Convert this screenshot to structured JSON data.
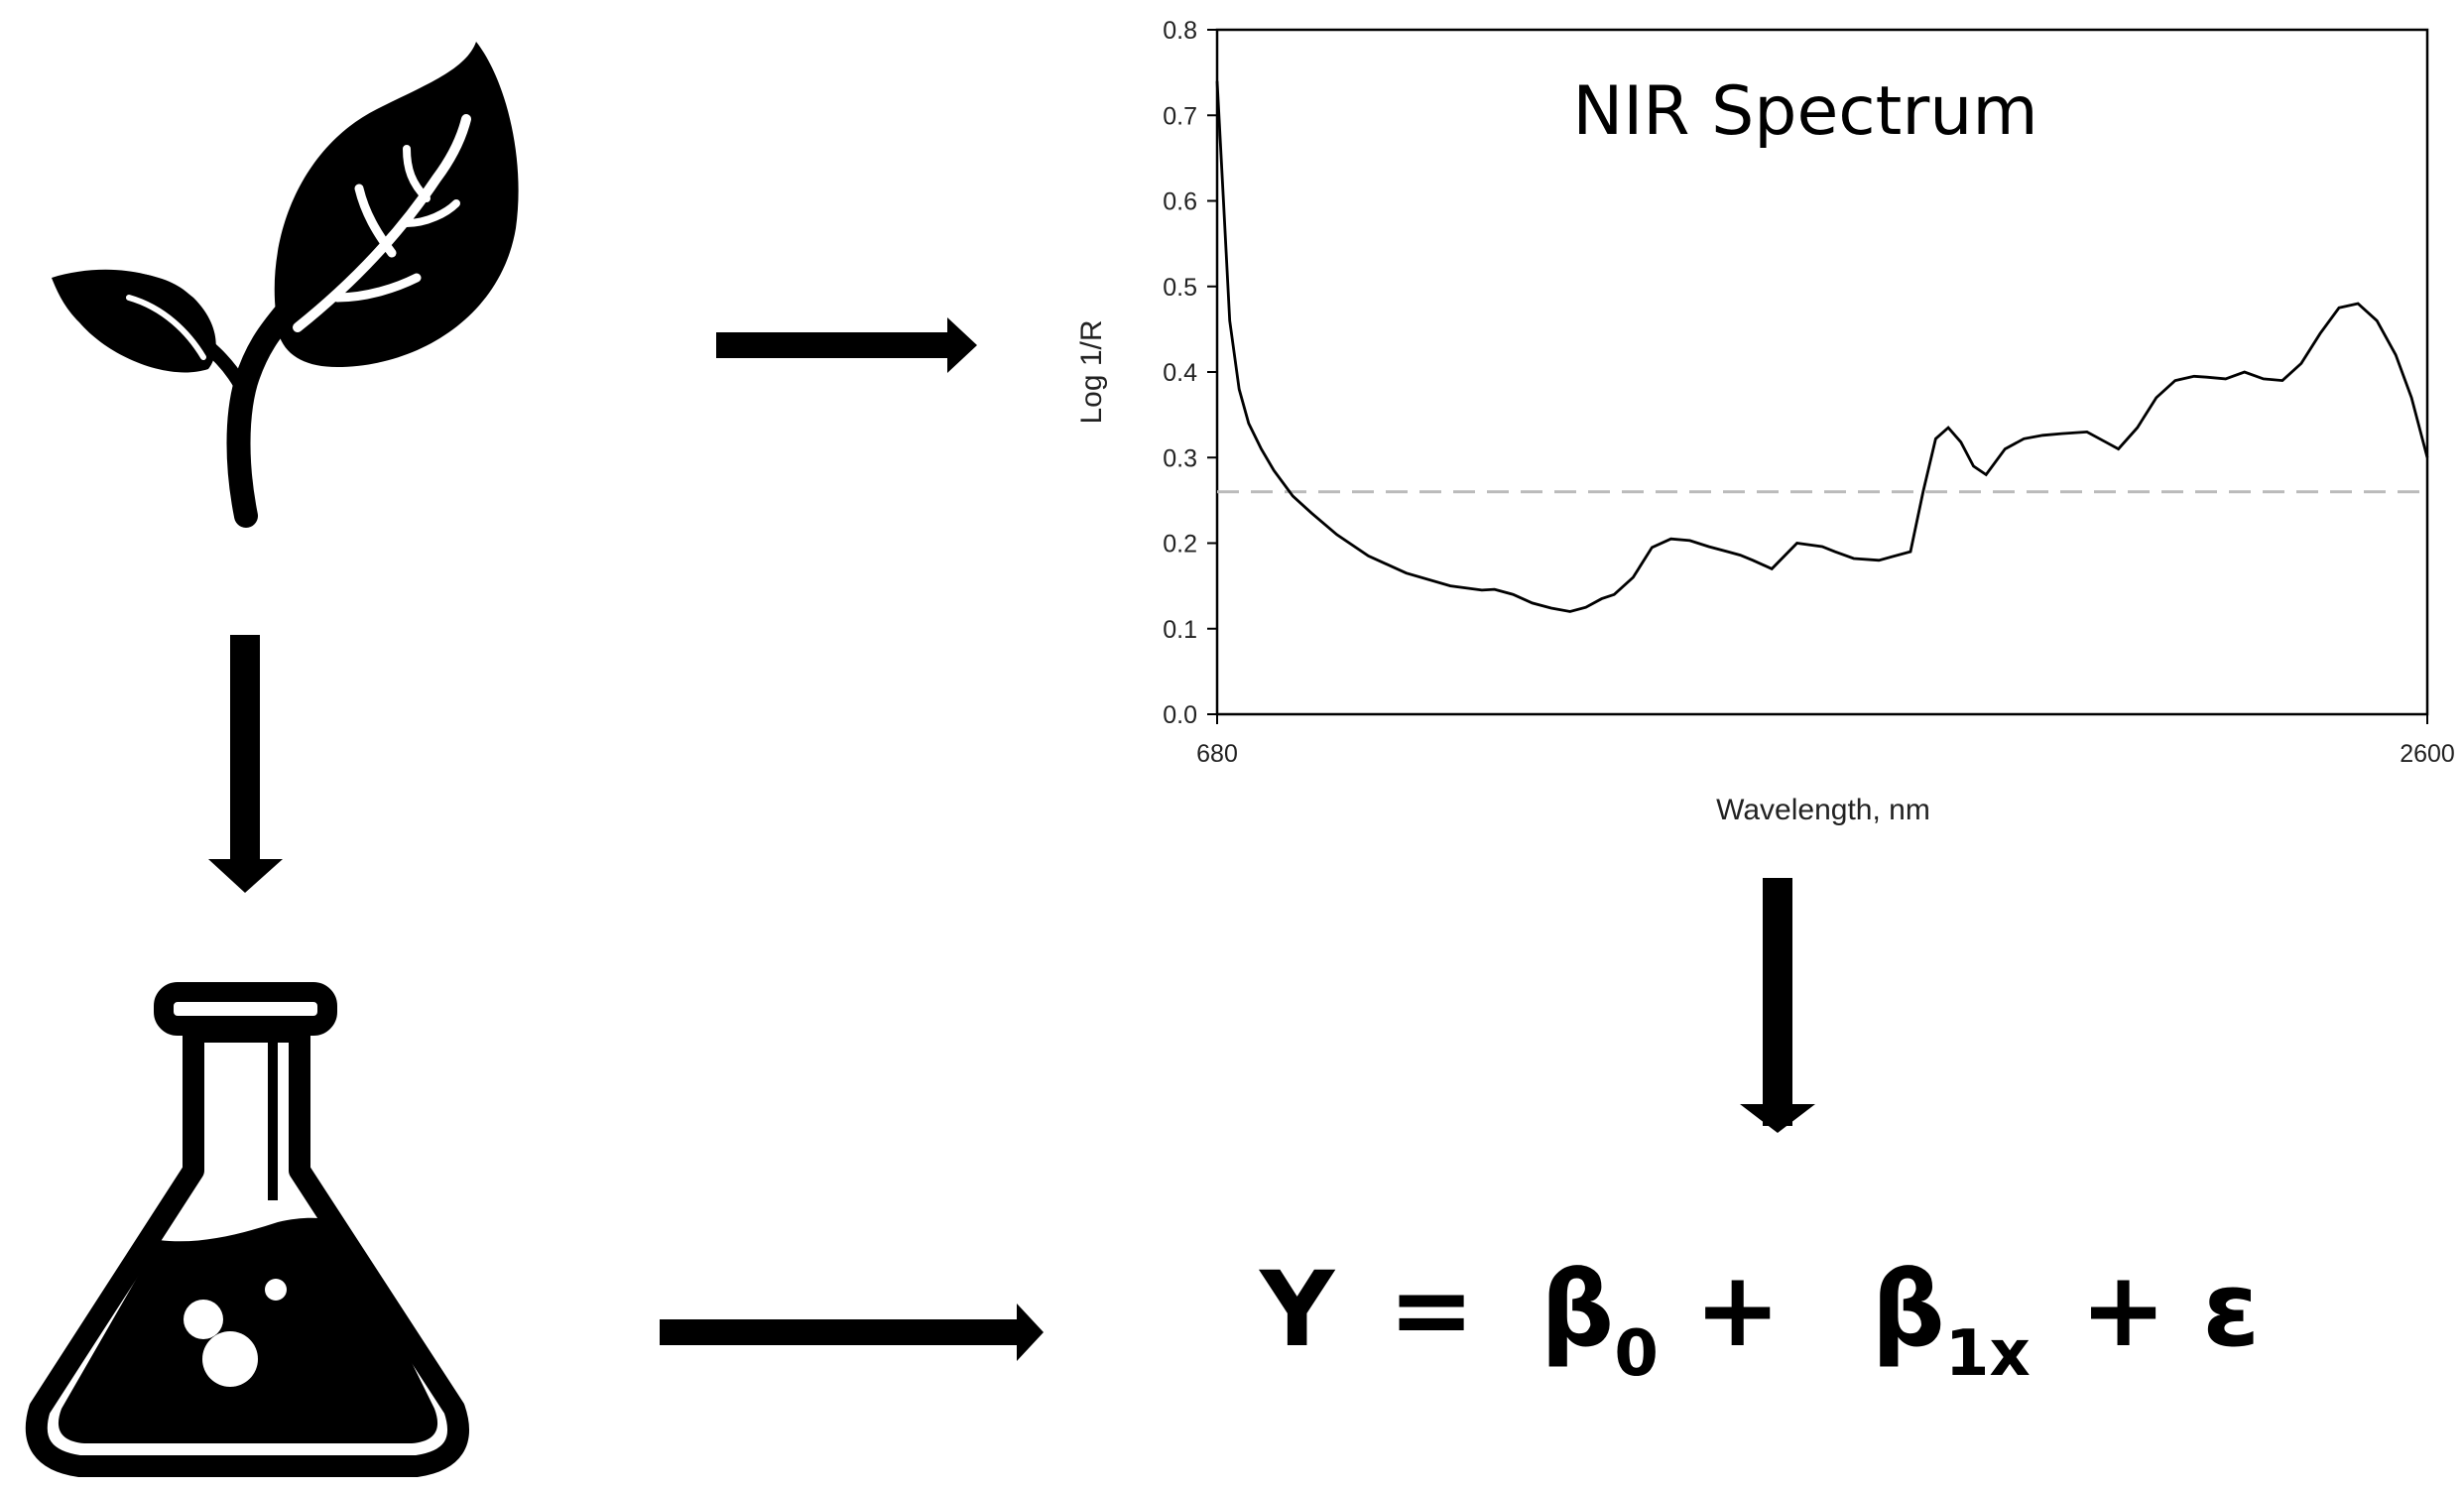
{
  "chart_data": {
    "type": "line",
    "title": "NIR Spectrum",
    "xlabel": "Wavelength, nm",
    "ylabel": "Log 1/R",
    "xlim": [
      680,
      2600
    ],
    "ylim": [
      0.0,
      0.8
    ],
    "x_ticks": [
      "680",
      "2600"
    ],
    "y_ticks": [
      "0.0",
      "0.1",
      "0.2",
      "0.3",
      "0.4",
      "0.5",
      "0.6",
      "0.7",
      "0.8"
    ],
    "reference_line": {
      "y": 0.26,
      "style": "dashed",
      "color": "#bbbbbb"
    },
    "grid": false,
    "legend": "none",
    "series": [
      {
        "color": "#000000",
        "x": [
          680,
          690,
          700,
          715,
          730,
          750,
          770,
          800,
          830,
          870,
          920,
          980,
          1050,
          1100,
          1120,
          1150,
          1180,
          1210,
          1240,
          1265,
          1290,
          1310,
          1340,
          1370,
          1400,
          1430,
          1460,
          1490,
          1510,
          1530,
          1560,
          1600,
          1640,
          1660,
          1690,
          1730,
          1780,
          1800,
          1820,
          1840,
          1860,
          1880,
          1900,
          1930,
          1960,
          1990,
          2020,
          2060,
          2090,
          2110,
          2140,
          2170,
          2200,
          2230,
          2250,
          2280,
          2310,
          2340,
          2370,
          2400,
          2430,
          2460,
          2490,
          2520,
          2550,
          2575,
          2600
        ],
        "y": [
          0.74,
          0.6,
          0.46,
          0.38,
          0.34,
          0.31,
          0.285,
          0.255,
          0.235,
          0.21,
          0.185,
          0.165,
          0.15,
          0.145,
          0.146,
          0.14,
          0.13,
          0.124,
          0.12,
          0.125,
          0.135,
          0.14,
          0.16,
          0.195,
          0.205,
          0.203,
          0.196,
          0.19,
          0.186,
          0.18,
          0.17,
          0.2,
          0.196,
          0.19,
          0.182,
          0.18,
          0.19,
          0.26,
          0.322,
          0.335,
          0.318,
          0.29,
          0.28,
          0.31,
          0.322,
          0.326,
          0.328,
          0.33,
          0.318,
          0.31,
          0.335,
          0.37,
          0.39,
          0.395,
          0.394,
          0.392,
          0.4,
          0.392,
          0.39,
          0.41,
          0.445,
          0.475,
          0.48,
          0.46,
          0.42,
          0.37,
          0.3
        ]
      }
    ]
  },
  "diagram": {
    "nodes": [
      {
        "id": "plant",
        "icon": "plant-icon"
      },
      {
        "id": "flask",
        "icon": "flask-icon"
      },
      {
        "id": "spectrum",
        "label": "NIR Spectrum"
      },
      {
        "id": "formula"
      }
    ],
    "edges": [
      {
        "from": "plant",
        "to": "spectrum"
      },
      {
        "from": "plant",
        "to": "flask"
      },
      {
        "from": "spectrum",
        "to": "formula"
      },
      {
        "from": "flask",
        "to": "formula"
      }
    ],
    "formula": {
      "y": "Y",
      "equals": "=",
      "beta0": "β",
      "beta0_sub": "0",
      "plus1": "+",
      "beta1": "β",
      "beta1_sub": "1x",
      "plus2": "+",
      "epsilon": "ε"
    }
  }
}
